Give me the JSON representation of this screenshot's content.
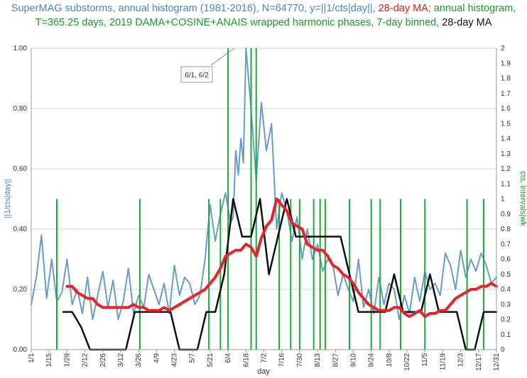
{
  "title": {
    "part1": "SuperMAG substorms, annual histogram (1981-2016), N=64770, y=||1/cts|day||, ",
    "part2": "28-day MA",
    "part3": "; annual histogram, T=365.25 days, 2019  DAMA+COSINE+ANAIS wrapped harmonic phases, 7-day binned, ",
    "part4": "28-day MA"
  },
  "annotation": "6/1, 6/2",
  "chart_data": {
    "type": "line",
    "xlabel": "day",
    "ylabel_left": "||1/cts|day||",
    "ylabel_right": "cts, intervals|wk",
    "ylim_left": [
      0,
      1
    ],
    "ylim_right": [
      0,
      2
    ],
    "yticks_left": [
      "0.00",
      "0.20",
      "0.40",
      "0.60",
      "0.80",
      "1.00"
    ],
    "yticks_right": [
      "0",
      "0.1",
      "0.2",
      "0.3",
      "0.4",
      "0.5",
      "0.6",
      "0.7",
      "0.8",
      "0.9",
      "1",
      "1.1",
      "1.2",
      "1.3",
      "1.4",
      "1.5",
      "1.6",
      "1.7",
      "1.8",
      "1.9",
      "2"
    ],
    "xticks": [
      {
        "label": "1/1",
        "day": 0
      },
      {
        "label": "1/15",
        "day": 14
      },
      {
        "label": "1/29",
        "day": 28
      },
      {
        "label": "2/12",
        "day": 42
      },
      {
        "label": "2/26",
        "day": 56
      },
      {
        "label": "3/12",
        "day": 70
      },
      {
        "label": "3/26",
        "day": 84
      },
      {
        "label": "4/9",
        "day": 98
      },
      {
        "label": "4/23",
        "day": 112
      },
      {
        "label": "5/7",
        "day": 126
      },
      {
        "label": "5/21",
        "day": 140
      },
      {
        "label": "6/4",
        "day": 154
      },
      {
        "label": "6/18",
        "day": 168
      },
      {
        "label": "7/2",
        "day": 182
      },
      {
        "label": "7/16",
        "day": 196
      },
      {
        "label": "7/30",
        "day": 210
      },
      {
        "label": "8/13",
        "day": 224
      },
      {
        "label": "8/27",
        "day": 238
      },
      {
        "label": "9/10",
        "day": 252
      },
      {
        "label": "9/24",
        "day": 266
      },
      {
        "label": "10/8",
        "day": 280
      },
      {
        "label": "10/22",
        "day": 294
      },
      {
        "label": "11/5",
        "day": 308
      },
      {
        "label": "11/19",
        "day": 322
      },
      {
        "label": "12/3",
        "day": 336
      },
      {
        "label": "12/17",
        "day": 350
      },
      {
        "label": "12/31",
        "day": 364
      }
    ],
    "colors": {
      "substorms": "#6a9bcb",
      "ma": "#e8232a",
      "phases": "#1fa83a",
      "binned": "#111111",
      "grid": "#c9d7e3"
    },
    "series": [
      {
        "axis": "left",
        "x": [
          0,
          4,
          8,
          12,
          16,
          20,
          24,
          28,
          32,
          36,
          40,
          44,
          48,
          52,
          56,
          60,
          64,
          68,
          72,
          76,
          80,
          84,
          88,
          92,
          96,
          100,
          104,
          108,
          112,
          116,
          120,
          124,
          128,
          132,
          136,
          140,
          144,
          148,
          152,
          156,
          158,
          160,
          162,
          164,
          166,
          168,
          172,
          176,
          180,
          184,
          188,
          192,
          196,
          200,
          204,
          208,
          212,
          216,
          220,
          224,
          228,
          232,
          236,
          240,
          244,
          248,
          252,
          256,
          260,
          264,
          268,
          272,
          276,
          280,
          284,
          288,
          292,
          296,
          300,
          304,
          308,
          312,
          316,
          320,
          324,
          328,
          332,
          336,
          340,
          344,
          348,
          352,
          356,
          360,
          364
        ],
        "y": [
          0.15,
          0.24,
          0.38,
          0.17,
          0.3,
          0.16,
          0.19,
          0.3,
          0.15,
          0.2,
          0.12,
          0.24,
          0.1,
          0.18,
          0.26,
          0.14,
          0.23,
          0.1,
          0.16,
          0.27,
          0.12,
          0.18,
          0.14,
          0.25,
          0.2,
          0.15,
          0.22,
          0.12,
          0.28,
          0.18,
          0.24,
          0.22,
          0.15,
          0.18,
          0.3,
          0.48,
          0.36,
          0.45,
          0.52,
          0.42,
          0.44,
          0.66,
          0.58,
          0.7,
          0.62,
          1.0,
          0.8,
          0.56,
          0.82,
          0.66,
          0.75,
          0.4,
          0.52,
          0.46,
          0.36,
          0.44,
          0.3,
          0.4,
          0.3,
          0.35,
          0.26,
          0.3,
          0.28,
          0.18,
          0.25,
          0.2,
          0.16,
          0.3,
          0.14,
          0.2,
          0.12,
          0.24,
          0.15,
          0.22,
          0.2,
          0.1,
          0.18,
          0.12,
          0.24,
          0.16,
          0.26,
          0.2,
          0.22,
          0.18,
          0.32,
          0.28,
          0.2,
          0.33,
          0.24,
          0.3,
          0.26,
          0.32,
          0.28,
          0.22,
          0.24
        ]
      },
      {
        "name": "28-day MA",
        "axis": "left",
        "x": [
          28,
          32,
          36,
          40,
          44,
          48,
          52,
          56,
          60,
          64,
          68,
          72,
          76,
          80,
          84,
          88,
          92,
          96,
          100,
          104,
          108,
          112,
          116,
          120,
          124,
          128,
          132,
          136,
          140,
          144,
          148,
          152,
          156,
          160,
          164,
          168,
          172,
          176,
          180,
          184,
          188,
          192,
          196,
          200,
          204,
          208,
          212,
          216,
          220,
          224,
          228,
          232,
          236,
          240,
          244,
          248,
          252,
          256,
          260,
          264,
          268,
          272,
          276,
          280,
          284,
          288,
          292,
          296,
          300,
          304,
          308,
          312,
          316,
          320,
          324,
          328,
          332,
          336,
          340,
          344,
          348,
          352,
          356,
          360,
          364
        ],
        "y": [
          0.21,
          0.21,
          0.19,
          0.18,
          0.17,
          0.17,
          0.15,
          0.14,
          0.14,
          0.14,
          0.14,
          0.14,
          0.14,
          0.15,
          0.14,
          0.14,
          0.13,
          0.13,
          0.13,
          0.14,
          0.13,
          0.14,
          0.15,
          0.16,
          0.17,
          0.18,
          0.19,
          0.2,
          0.22,
          0.24,
          0.27,
          0.31,
          0.32,
          0.33,
          0.33,
          0.35,
          0.34,
          0.31,
          0.37,
          0.41,
          0.43,
          0.5,
          0.48,
          0.46,
          0.42,
          0.41,
          0.4,
          0.35,
          0.34,
          0.33,
          0.33,
          0.31,
          0.28,
          0.27,
          0.25,
          0.24,
          0.22,
          0.19,
          0.17,
          0.15,
          0.14,
          0.13,
          0.13,
          0.13,
          0.14,
          0.14,
          0.12,
          0.11,
          0.12,
          0.13,
          0.11,
          0.12,
          0.12,
          0.13,
          0.13,
          0.15,
          0.17,
          0.18,
          0.19,
          0.2,
          0.2,
          0.21,
          0.21,
          0.22,
          0.21
        ]
      },
      {
        "axis": "right",
        "x": [
          25,
          32,
          39,
          46,
          53,
          60,
          67,
          74,
          81,
          88,
          95,
          102,
          109,
          116,
          123,
          130,
          137,
          144,
          151,
          158,
          165,
          172,
          179,
          186,
          193,
          200,
          207,
          214,
          221,
          228,
          235,
          242,
          249,
          256,
          263,
          270,
          277,
          284,
          291,
          298,
          305,
          312,
          319,
          326,
          333,
          340,
          347,
          354,
          361,
          364
        ],
        "y": [
          0.25,
          0.25,
          0.15,
          0,
          0,
          0,
          0,
          0,
          0.25,
          0.25,
          0.25,
          0.25,
          0.25,
          0,
          0,
          0,
          0.25,
          0.25,
          0.5,
          1.0,
          0.75,
          0.75,
          1.0,
          0.5,
          0.75,
          1.0,
          0.75,
          0.75,
          0.75,
          0.75,
          0.75,
          0.75,
          0.5,
          0.25,
          0.25,
          0.25,
          0.25,
          0.5,
          0.25,
          0.25,
          0.25,
          0.5,
          0.25,
          0.25,
          0.25,
          0,
          0,
          0.25,
          0.25,
          0.25
        ]
      },
      {
        "axis": "right",
        "type": "impulses",
        "days": [
          20,
          85,
          139,
          148,
          154,
          172,
          176,
          194,
          203,
          210,
          221,
          226,
          230,
          249,
          266,
          273,
          289,
          308,
          341,
          354
        ],
        "heights": [
          1,
          1,
          1,
          1,
          2,
          2,
          2,
          1,
          1,
          1,
          1,
          1,
          1,
          1,
          1,
          1,
          1,
          1,
          1,
          1
        ]
      }
    ]
  }
}
